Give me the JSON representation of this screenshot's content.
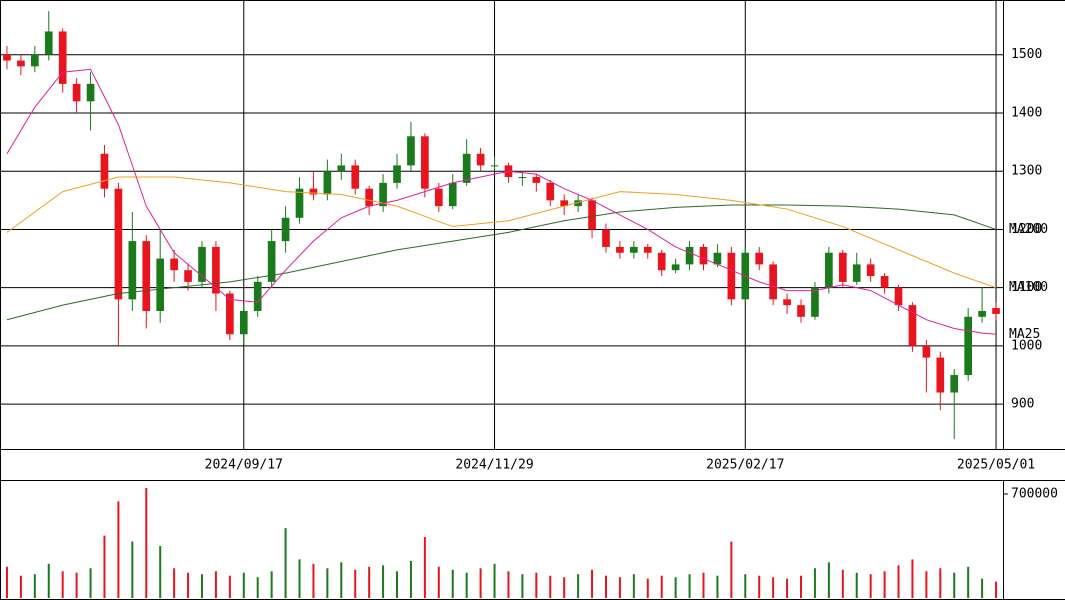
{
  "chart_data": {
    "type": "candlestick",
    "categories": [
      null,
      null,
      null,
      null,
      null,
      null,
      null,
      null,
      null,
      null,
      null,
      null,
      null,
      null,
      null,
      null,
      null,
      "2024/09/17",
      null,
      null,
      null,
      null,
      null,
      null,
      null,
      null,
      null,
      null,
      null,
      null,
      null,
      null,
      null,
      null,
      null,
      "2024/11/29",
      null,
      null,
      null,
      null,
      null,
      null,
      null,
      null,
      null,
      null,
      null,
      null,
      null,
      null,
      null,
      null,
      null,
      "2025/02/17",
      null,
      null,
      null,
      null,
      null,
      null,
      null,
      null,
      null,
      null,
      null,
      null,
      null,
      null,
      null,
      null,
      null,
      "2025/05/01"
    ],
    "open": [
      1500,
      1490,
      1480,
      1500,
      1540,
      1450,
      1420,
      1330,
      1270,
      1080,
      1180,
      1060,
      1150,
      1130,
      1110,
      1170,
      1090,
      1020,
      1060,
      1110,
      1180,
      1220,
      1270,
      1260,
      1300,
      1310,
      1270,
      1240,
      1280,
      1310,
      1360,
      1270,
      1240,
      1280,
      1330,
      1310,
      1310,
      1290,
      1290,
      1280,
      1250,
      1240,
      1250,
      1200,
      1170,
      1160,
      1170,
      1160,
      1130,
      1140,
      1170,
      1140,
      1160,
      1080,
      1160,
      1140,
      1080,
      1070,
      1050,
      1100,
      1160,
      1110,
      1140,
      1120,
      1100,
      1070,
      1000,
      980,
      920,
      950,
      1050,
      1065
    ],
    "high": [
      1515,
      1500,
      1515,
      1575,
      1545,
      1460,
      1470,
      1345,
      1280,
      1230,
      1190,
      1200,
      1165,
      1140,
      1180,
      1180,
      1095,
      1070,
      1120,
      1200,
      1240,
      1290,
      1300,
      1320,
      1330,
      1320,
      1275,
      1295,
      1330,
      1385,
      1365,
      1280,
      1295,
      1355,
      1340,
      1325,
      1315,
      1300,
      1295,
      1285,
      1260,
      1260,
      1255,
      1210,
      1180,
      1180,
      1175,
      1165,
      1150,
      1180,
      1175,
      1175,
      1170,
      1170,
      1170,
      1145,
      1090,
      1080,
      1110,
      1170,
      1165,
      1160,
      1150,
      1125,
      1105,
      1075,
      1010,
      990,
      960,
      1065,
      1100,
      1075
    ],
    "low": [
      1475,
      1465,
      1470,
      1490,
      1435,
      1400,
      1370,
      1255,
      1000,
      1060,
      1030,
      1040,
      1110,
      1095,
      1100,
      1060,
      1010,
      1005,
      1050,
      1100,
      1160,
      1210,
      1250,
      1250,
      1285,
      1260,
      1225,
      1230,
      1270,
      1300,
      1255,
      1230,
      1235,
      1275,
      1300,
      1300,
      1280,
      1275,
      1265,
      1240,
      1225,
      1230,
      1185,
      1160,
      1150,
      1150,
      1150,
      1120,
      1125,
      1130,
      1130,
      1135,
      1070,
      1075,
      1130,
      1070,
      1055,
      1040,
      1045,
      1090,
      1100,
      1105,
      1110,
      1090,
      1060,
      990,
      920,
      890,
      840,
      940,
      1040,
      1045
    ],
    "close": [
      1490,
      1480,
      1500,
      1540,
      1450,
      1420,
      1450,
      1270,
      1080,
      1180,
      1060,
      1150,
      1130,
      1110,
      1170,
      1090,
      1020,
      1060,
      1110,
      1180,
      1220,
      1270,
      1260,
      1300,
      1310,
      1270,
      1240,
      1280,
      1310,
      1360,
      1270,
      1240,
      1280,
      1330,
      1310,
      1310,
      1290,
      1290,
      1280,
      1250,
      1240,
      1250,
      1200,
      1170,
      1160,
      1170,
      1160,
      1130,
      1140,
      1170,
      1140,
      1160,
      1080,
      1160,
      1140,
      1080,
      1070,
      1050,
      1100,
      1160,
      1110,
      1140,
      1120,
      1100,
      1070,
      1000,
      980,
      920,
      950,
      1050,
      1060,
      1055
    ],
    "volume": [
      210000,
      150000,
      160000,
      230000,
      180000,
      170000,
      200000,
      420000,
      650000,
      380000,
      740000,
      350000,
      200000,
      170000,
      160000,
      180000,
      150000,
      170000,
      140000,
      180000,
      470000,
      260000,
      230000,
      200000,
      240000,
      190000,
      210000,
      220000,
      180000,
      250000,
      410000,
      210000,
      190000,
      170000,
      200000,
      230000,
      180000,
      160000,
      170000,
      150000,
      140000,
      160000,
      190000,
      150000,
      140000,
      160000,
      130000,
      150000,
      140000,
      160000,
      170000,
      150000,
      380000,
      160000,
      150000,
      140000,
      130000,
      150000,
      200000,
      240000,
      190000,
      170000,
      160000,
      180000,
      220000,
      260000,
      180000,
      200000,
      170000,
      210000,
      130000,
      110000
    ],
    "up_color": "#1b7a1b",
    "down_color": "#e8141e",
    "ylim": [
      823,
      1594
    ],
    "yticks": [
      900,
      1000,
      1100,
      1200,
      1300,
      1400,
      1500
    ],
    "volume_ylim": [
      0,
      794000
    ],
    "volume_yticks": [
      700000
    ],
    "moving_averages": [
      {
        "name": "MA200",
        "color": "#2b6b2b",
        "x": [
          0,
          4,
          8,
          12,
          16,
          20,
          24,
          28,
          32,
          36,
          40,
          44,
          48,
          52,
          56,
          60,
          64,
          68,
          71
        ],
        "values": [
          1045,
          1070,
          1090,
          1100,
          1110,
          1125,
          1145,
          1165,
          1180,
          1195,
          1215,
          1230,
          1238,
          1242,
          1242,
          1240,
          1235,
          1225,
          1200
        ]
      },
      {
        "name": "MA100",
        "color": "#f0a020",
        "x": [
          0,
          4,
          8,
          12,
          16,
          20,
          24,
          28,
          32,
          36,
          40,
          44,
          48,
          52,
          56,
          60,
          64,
          68,
          71
        ],
        "values": [
          1195,
          1265,
          1290,
          1290,
          1280,
          1265,
          1260,
          1240,
          1205,
          1215,
          1240,
          1265,
          1260,
          1250,
          1235,
          1205,
          1165,
          1125,
          1100
        ]
      },
      {
        "name": "MA25",
        "color": "#e0209a",
        "x": [
          0,
          2,
          4,
          6,
          8,
          10,
          12,
          14,
          16,
          18,
          20,
          22,
          24,
          26,
          28,
          30,
          32,
          34,
          36,
          38,
          40,
          42,
          44,
          46,
          48,
          50,
          52,
          54,
          56,
          58,
          60,
          62,
          64,
          66,
          68,
          70,
          71
        ],
        "values": [
          1330,
          1410,
          1470,
          1475,
          1380,
          1240,
          1160,
          1120,
          1080,
          1075,
          1130,
          1180,
          1220,
          1240,
          1250,
          1265,
          1280,
          1290,
          1300,
          1295,
          1270,
          1250,
          1225,
          1200,
          1170,
          1150,
          1130,
          1110,
          1095,
          1095,
          1105,
          1095,
          1070,
          1045,
          1030,
          1022,
          1020
        ]
      }
    ]
  }
}
